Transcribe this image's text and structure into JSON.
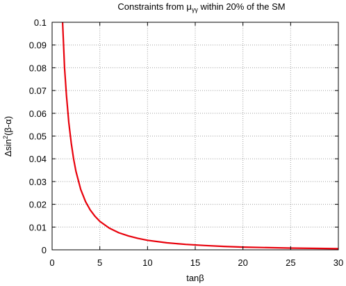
{
  "chart_data": {
    "type": "line",
    "title": "Constraints from μ",
    "title_sub": "γγ",
    "title_rest": " within 20% of the SM",
    "xlabel": "tanβ",
    "ylabel_prefix": "Δsin",
    "ylabel_sup": "2",
    "ylabel_suffix": "(β-α)",
    "xlim": [
      0,
      30
    ],
    "ylim": [
      0,
      0.1
    ],
    "grid": true,
    "x_ticks": [
      0,
      5,
      10,
      15,
      20,
      25,
      30
    ],
    "x_tick_labels": [
      "0",
      "5",
      "10",
      "15",
      "20",
      "25",
      "30"
    ],
    "y_ticks": [
      0,
      0.01,
      0.02,
      0.03,
      0.04,
      0.05,
      0.06,
      0.07,
      0.08,
      0.09,
      0.1
    ],
    "y_tick_labels": [
      "0",
      "0.01",
      "0.02",
      "0.03",
      "0.04",
      "0.05",
      "0.06",
      "0.07",
      "0.08",
      "0.09",
      "0.1"
    ],
    "series": [
      {
        "color": "#e8000b",
        "x": [
          1.1,
          1.3,
          1.5,
          1.75,
          2,
          2.25,
          2.5,
          3,
          3.5,
          4,
          4.5,
          5,
          6,
          7,
          8,
          9,
          10,
          12,
          14,
          16,
          18,
          20,
          22,
          25,
          28,
          30
        ],
        "y": [
          0.1,
          0.08,
          0.068,
          0.056,
          0.047,
          0.04,
          0.0345,
          0.0265,
          0.0212,
          0.0175,
          0.0147,
          0.0125,
          0.0095,
          0.0075,
          0.0061,
          0.005,
          0.0042,
          0.0031,
          0.0024,
          0.0019,
          0.0015,
          0.0012,
          0.001,
          0.00075,
          0.0006,
          0.0005
        ]
      }
    ]
  }
}
